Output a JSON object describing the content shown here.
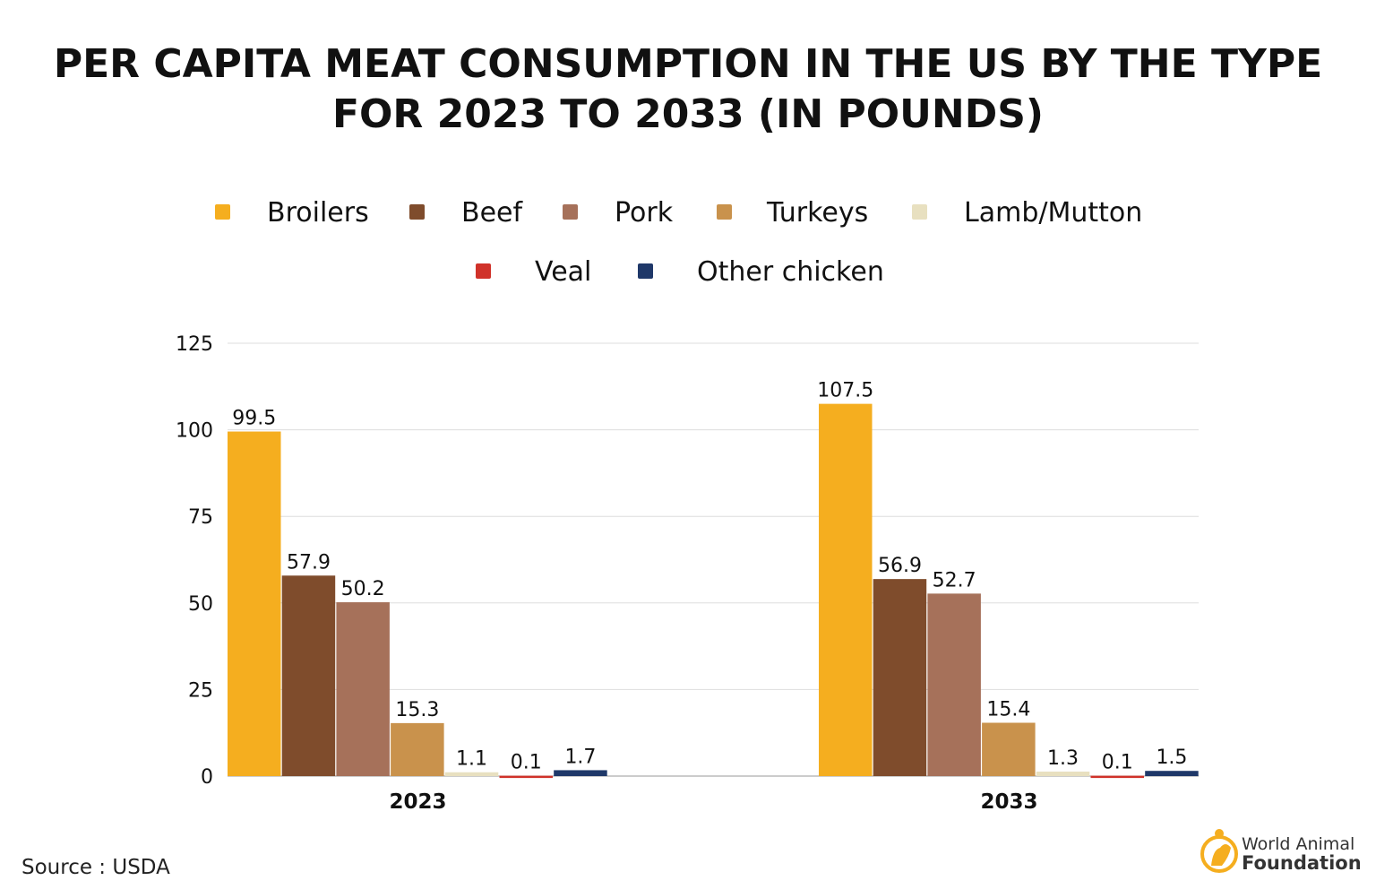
{
  "chart_data": {
    "type": "bar",
    "title": "PER CAPITA MEAT CONSUMPTION IN THE US BY THE TYPE FOR 2023 TO 2033 (IN POUNDS)",
    "title_lines": [
      "PER CAPITA MEAT CONSUMPTION IN THE US BY THE TYPE",
      "FOR 2023 TO 2033 (IN POUNDS)"
    ],
    "categories": [
      "2023",
      "2033"
    ],
    "series": [
      {
        "name": "Broilers",
        "color": "#F5AE1F",
        "values": [
          99.5,
          107.5
        ]
      },
      {
        "name": "Beef",
        "color": "#7F4C2C",
        "values": [
          57.9,
          56.9
        ]
      },
      {
        "name": "Pork",
        "color": "#A6715A",
        "values": [
          50.2,
          52.7
        ]
      },
      {
        "name": "Turkeys",
        "color": "#C9924C",
        "values": [
          15.3,
          15.4
        ]
      },
      {
        "name": "Lamb/Mutton",
        "color": "#E8E0C0",
        "values": [
          1.1,
          1.3
        ]
      },
      {
        "name": "Veal",
        "color": "#D0322A",
        "values": [
          0.1,
          0.1
        ]
      },
      {
        "name": "Other chicken",
        "color": "#1F3869",
        "values": [
          1.7,
          1.5
        ]
      }
    ],
    "ylim": [
      0,
      125
    ],
    "yticks": [
      "0",
      "25",
      "50",
      "75",
      "100",
      "125"
    ],
    "grid": true,
    "legend_position": "top",
    "xlabel": "",
    "ylabel": ""
  },
  "source": "Source : USDA",
  "logo": {
    "line1": "World Animal",
    "line2": "Foundation",
    "color": "#F5AE1F"
  }
}
